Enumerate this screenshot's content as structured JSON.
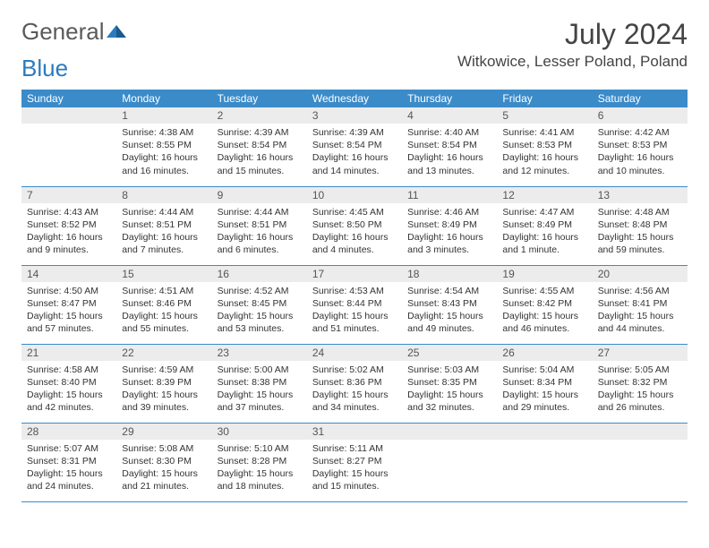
{
  "logo": {
    "text1": "General",
    "text2": "Blue"
  },
  "title": "July 2024",
  "location": "Witkowice, Lesser Poland, Poland",
  "colors": {
    "header_bg": "#3b8bc9",
    "header_text": "#ffffff",
    "daynum_bg": "#ececec",
    "border": "#3b8bc9",
    "logo_gray": "#5a5a5a",
    "logo_blue": "#2b7bbf"
  },
  "day_headers": [
    "Sunday",
    "Monday",
    "Tuesday",
    "Wednesday",
    "Thursday",
    "Friday",
    "Saturday"
  ],
  "weeks": [
    [
      {
        "n": "",
        "lines": []
      },
      {
        "n": "1",
        "lines": [
          "Sunrise: 4:38 AM",
          "Sunset: 8:55 PM",
          "Daylight: 16 hours and 16 minutes."
        ]
      },
      {
        "n": "2",
        "lines": [
          "Sunrise: 4:39 AM",
          "Sunset: 8:54 PM",
          "Daylight: 16 hours and 15 minutes."
        ]
      },
      {
        "n": "3",
        "lines": [
          "Sunrise: 4:39 AM",
          "Sunset: 8:54 PM",
          "Daylight: 16 hours and 14 minutes."
        ]
      },
      {
        "n": "4",
        "lines": [
          "Sunrise: 4:40 AM",
          "Sunset: 8:54 PM",
          "Daylight: 16 hours and 13 minutes."
        ]
      },
      {
        "n": "5",
        "lines": [
          "Sunrise: 4:41 AM",
          "Sunset: 8:53 PM",
          "Daylight: 16 hours and 12 minutes."
        ]
      },
      {
        "n": "6",
        "lines": [
          "Sunrise: 4:42 AM",
          "Sunset: 8:53 PM",
          "Daylight: 16 hours and 10 minutes."
        ]
      }
    ],
    [
      {
        "n": "7",
        "lines": [
          "Sunrise: 4:43 AM",
          "Sunset: 8:52 PM",
          "Daylight: 16 hours and 9 minutes."
        ]
      },
      {
        "n": "8",
        "lines": [
          "Sunrise: 4:44 AM",
          "Sunset: 8:51 PM",
          "Daylight: 16 hours and 7 minutes."
        ]
      },
      {
        "n": "9",
        "lines": [
          "Sunrise: 4:44 AM",
          "Sunset: 8:51 PM",
          "Daylight: 16 hours and 6 minutes."
        ]
      },
      {
        "n": "10",
        "lines": [
          "Sunrise: 4:45 AM",
          "Sunset: 8:50 PM",
          "Daylight: 16 hours and 4 minutes."
        ]
      },
      {
        "n": "11",
        "lines": [
          "Sunrise: 4:46 AM",
          "Sunset: 8:49 PM",
          "Daylight: 16 hours and 3 minutes."
        ]
      },
      {
        "n": "12",
        "lines": [
          "Sunrise: 4:47 AM",
          "Sunset: 8:49 PM",
          "Daylight: 16 hours and 1 minute."
        ]
      },
      {
        "n": "13",
        "lines": [
          "Sunrise: 4:48 AM",
          "Sunset: 8:48 PM",
          "Daylight: 15 hours and 59 minutes."
        ]
      }
    ],
    [
      {
        "n": "14",
        "lines": [
          "Sunrise: 4:50 AM",
          "Sunset: 8:47 PM",
          "Daylight: 15 hours and 57 minutes."
        ]
      },
      {
        "n": "15",
        "lines": [
          "Sunrise: 4:51 AM",
          "Sunset: 8:46 PM",
          "Daylight: 15 hours and 55 minutes."
        ]
      },
      {
        "n": "16",
        "lines": [
          "Sunrise: 4:52 AM",
          "Sunset: 8:45 PM",
          "Daylight: 15 hours and 53 minutes."
        ]
      },
      {
        "n": "17",
        "lines": [
          "Sunrise: 4:53 AM",
          "Sunset: 8:44 PM",
          "Daylight: 15 hours and 51 minutes."
        ]
      },
      {
        "n": "18",
        "lines": [
          "Sunrise: 4:54 AM",
          "Sunset: 8:43 PM",
          "Daylight: 15 hours and 49 minutes."
        ]
      },
      {
        "n": "19",
        "lines": [
          "Sunrise: 4:55 AM",
          "Sunset: 8:42 PM",
          "Daylight: 15 hours and 46 minutes."
        ]
      },
      {
        "n": "20",
        "lines": [
          "Sunrise: 4:56 AM",
          "Sunset: 8:41 PM",
          "Daylight: 15 hours and 44 minutes."
        ]
      }
    ],
    [
      {
        "n": "21",
        "lines": [
          "Sunrise: 4:58 AM",
          "Sunset: 8:40 PM",
          "Daylight: 15 hours and 42 minutes."
        ]
      },
      {
        "n": "22",
        "lines": [
          "Sunrise: 4:59 AM",
          "Sunset: 8:39 PM",
          "Daylight: 15 hours and 39 minutes."
        ]
      },
      {
        "n": "23",
        "lines": [
          "Sunrise: 5:00 AM",
          "Sunset: 8:38 PM",
          "Daylight: 15 hours and 37 minutes."
        ]
      },
      {
        "n": "24",
        "lines": [
          "Sunrise: 5:02 AM",
          "Sunset: 8:36 PM",
          "Daylight: 15 hours and 34 minutes."
        ]
      },
      {
        "n": "25",
        "lines": [
          "Sunrise: 5:03 AM",
          "Sunset: 8:35 PM",
          "Daylight: 15 hours and 32 minutes."
        ]
      },
      {
        "n": "26",
        "lines": [
          "Sunrise: 5:04 AM",
          "Sunset: 8:34 PM",
          "Daylight: 15 hours and 29 minutes."
        ]
      },
      {
        "n": "27",
        "lines": [
          "Sunrise: 5:05 AM",
          "Sunset: 8:32 PM",
          "Daylight: 15 hours and 26 minutes."
        ]
      }
    ],
    [
      {
        "n": "28",
        "lines": [
          "Sunrise: 5:07 AM",
          "Sunset: 8:31 PM",
          "Daylight: 15 hours and 24 minutes."
        ]
      },
      {
        "n": "29",
        "lines": [
          "Sunrise: 5:08 AM",
          "Sunset: 8:30 PM",
          "Daylight: 15 hours and 21 minutes."
        ]
      },
      {
        "n": "30",
        "lines": [
          "Sunrise: 5:10 AM",
          "Sunset: 8:28 PM",
          "Daylight: 15 hours and 18 minutes."
        ]
      },
      {
        "n": "31",
        "lines": [
          "Sunrise: 5:11 AM",
          "Sunset: 8:27 PM",
          "Daylight: 15 hours and 15 minutes."
        ]
      },
      {
        "n": "",
        "lines": []
      },
      {
        "n": "",
        "lines": []
      },
      {
        "n": "",
        "lines": []
      }
    ]
  ]
}
